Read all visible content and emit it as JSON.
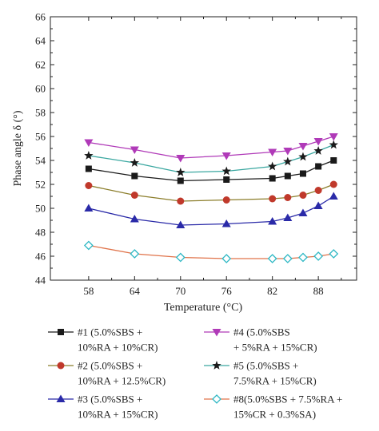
{
  "chart_data": {
    "type": "line",
    "title": "",
    "xlabel": "Temperature (°C)",
    "ylabel": "Phase angle δ (°)",
    "ylim": [
      44,
      66
    ],
    "xlim": [
      53,
      93
    ],
    "yticks": [
      44,
      46,
      48,
      50,
      52,
      54,
      56,
      58,
      60,
      62,
      64,
      66
    ],
    "xticks": [
      58,
      64,
      70,
      76,
      82,
      88
    ],
    "x": [
      58,
      64,
      70,
      76,
      82,
      84,
      86,
      88,
      90
    ],
    "grid": false,
    "legend_position": "bottom",
    "series": [
      {
        "name": "#1 (5.0%SBS + 10%RA + 10%CR)",
        "legend_lines": [
          "#1 (5.0%SBS +",
          "10%RA + 10%CR)"
        ],
        "color": "#1a1a1a",
        "marker": "square",
        "values": [
          53.3,
          52.7,
          52.3,
          52.4,
          52.5,
          52.7,
          52.9,
          53.5,
          54.0
        ]
      },
      {
        "name": "#2 (5.0%SBS + 10%RA + 12.5%CR)",
        "legend_lines": [
          "#2 (5.0%SBS +",
          "10%RA + 12.5%CR)"
        ],
        "color": "#c0392b",
        "line_color": "#8b7d2a",
        "marker": "circle",
        "values": [
          51.9,
          51.1,
          50.6,
          50.7,
          50.8,
          50.9,
          51.1,
          51.5,
          52.0
        ]
      },
      {
        "name": "#3 (5.0%SBS + 10%RA + 15%CR)",
        "legend_lines": [
          "#3 (5.0%SBS +",
          "10%RA + 15%CR)"
        ],
        "color": "#2a2aa8",
        "marker": "triangle",
        "values": [
          50.0,
          49.1,
          48.6,
          48.7,
          48.9,
          49.2,
          49.6,
          50.2,
          51.0
        ]
      },
      {
        "name": "#4 (5.0%SBS + 5%RA + 15%CR)",
        "legend_lines": [
          "#4 (5.0%SBS",
          "+ 5%RA + 15%CR)"
        ],
        "color": "#b03ab8",
        "marker": "triangle-down",
        "values": [
          55.5,
          54.9,
          54.2,
          54.4,
          54.7,
          54.8,
          55.2,
          55.6,
          56.0
        ]
      },
      {
        "name": "#5 (5.0%SBS + 7.5%RA + 15%CR)",
        "legend_lines": [
          "#5 (5.0%SBS +",
          "7.5%RA + 15%CR)"
        ],
        "color": "#1a1a1a",
        "line_color": "#3aa7a0",
        "marker": "star",
        "values": [
          54.4,
          53.8,
          53.0,
          53.1,
          53.5,
          53.9,
          54.3,
          54.8,
          55.3
        ]
      },
      {
        "name": "#8(5.0%SBS + 7.5%RA + 15%CR + 0.3%SA)",
        "legend_lines": [
          "#8(5.0%SBS + 7.5%RA +",
          "15%CR + 0.3%SA)"
        ],
        "color": "#2fb8c4",
        "line_color": "#e0734a",
        "marker": "diamond-open",
        "values": [
          46.9,
          46.2,
          45.9,
          45.8,
          45.8,
          45.8,
          45.9,
          46.0,
          46.2
        ]
      }
    ]
  }
}
